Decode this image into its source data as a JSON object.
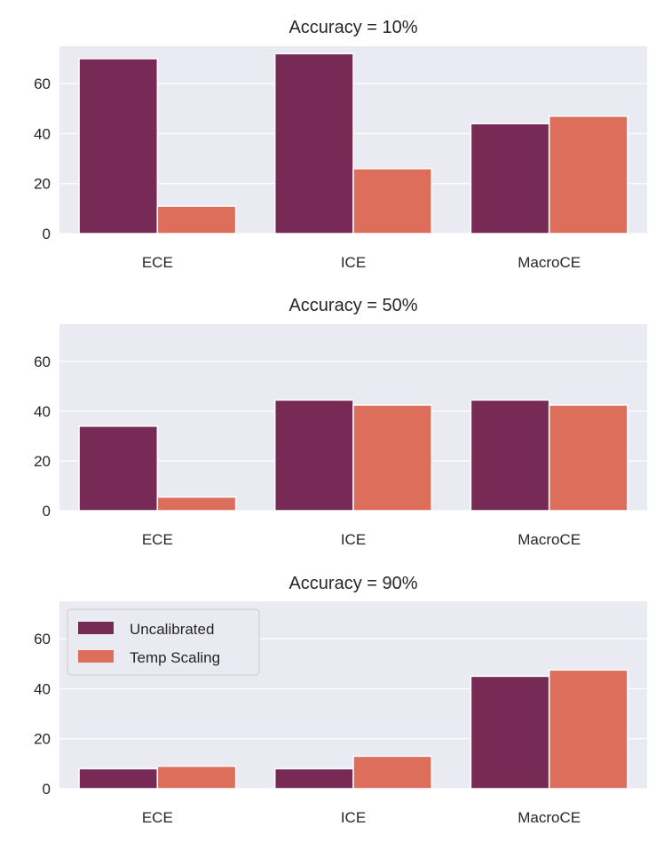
{
  "colors": {
    "background": "#eaeaf2",
    "grid": "#ffffff",
    "uncalibrated": "#772a55",
    "temp_scaling": "#dc6e5b"
  },
  "chart_data": [
    {
      "type": "bar",
      "title": "Accuracy = 10%",
      "categories": [
        "ECE",
        "ICE",
        "MacroCE"
      ],
      "series": [
        {
          "name": "Uncalibrated",
          "values": [
            70,
            72,
            44
          ]
        },
        {
          "name": "Temp Scaling",
          "values": [
            11,
            26,
            47
          ]
        }
      ],
      "ylim": [
        0,
        75
      ],
      "yticks": [
        0,
        20,
        40,
        60
      ],
      "legend": null
    },
    {
      "type": "bar",
      "title": "Accuracy = 50%",
      "categories": [
        "ECE",
        "ICE",
        "MacroCE"
      ],
      "series": [
        {
          "name": "Uncalibrated",
          "values": [
            34,
            44.5,
            44.5
          ]
        },
        {
          "name": "Temp Scaling",
          "values": [
            5.5,
            42.5,
            42.5
          ]
        }
      ],
      "ylim": [
        0,
        75
      ],
      "yticks": [
        0,
        20,
        40,
        60
      ],
      "legend": null
    },
    {
      "type": "bar",
      "title": "Accuracy = 90%",
      "categories": [
        "ECE",
        "ICE",
        "MacroCE"
      ],
      "series": [
        {
          "name": "Uncalibrated",
          "values": [
            8,
            8,
            45
          ]
        },
        {
          "name": "Temp Scaling",
          "values": [
            9,
            13,
            47.5
          ]
        }
      ],
      "ylim": [
        0,
        75
      ],
      "yticks": [
        0,
        20,
        40,
        60
      ],
      "legend": "top-left"
    }
  ]
}
